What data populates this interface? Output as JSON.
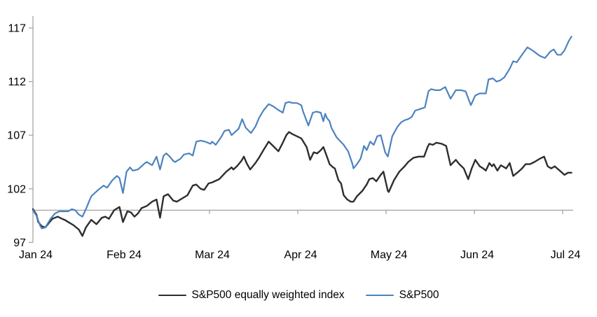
{
  "colors": {
    "background": "#ffffff",
    "axis": "#a6a6a6",
    "text": "#000000",
    "sp500_equal_weight_line": "#2e2e2e",
    "sp500_line": "#4c83c0"
  },
  "chart_data": {
    "type": "line",
    "title": "",
    "xlabel": "",
    "ylabel": "",
    "grid": false,
    "legend_position": "bottom",
    "x_axis": {
      "tick_labels": [
        "Jan 24",
        "Feb 24",
        "Mar 24",
        "Apr 24",
        "May 24",
        "Jun 24",
        "Jul 24"
      ],
      "tick_values": [
        0,
        1,
        2,
        3,
        4,
        5,
        6
      ],
      "range": [
        0,
        6.12
      ],
      "unit": "months since Jan 24"
    },
    "y_axis": {
      "tick_labels": [
        "97",
        "102",
        "107",
        "112",
        "117"
      ],
      "tick_values": [
        97,
        102,
        107,
        112,
        117
      ],
      "range": [
        97,
        117.5
      ],
      "baseline_value": 100
    },
    "series": [
      {
        "name": "S&P500 equally weighted index",
        "color": "#2e2e2e",
        "width": 2.4,
        "points": [
          [
            0,
            100.1
          ],
          [
            0.04,
            99.6
          ],
          [
            0.06,
            98.9
          ],
          [
            0.1,
            98.5
          ],
          [
            0.14,
            98.4
          ],
          [
            0.18,
            98.8
          ],
          [
            0.22,
            99.2
          ],
          [
            0.28,
            99.4
          ],
          [
            0.33,
            99.2
          ],
          [
            0.36,
            99.1
          ],
          [
            0.4,
            98.9
          ],
          [
            0.46,
            98.6
          ],
          [
            0.52,
            98.2
          ],
          [
            0.56,
            97.6
          ],
          [
            0.6,
            98.4
          ],
          [
            0.66,
            99.1
          ],
          [
            0.72,
            98.7
          ],
          [
            0.78,
            99.3
          ],
          [
            0.82,
            99.4
          ],
          [
            0.86,
            99.2
          ],
          [
            0.92,
            100
          ],
          [
            0.98,
            100.3
          ],
          [
            1.02,
            98.9
          ],
          [
            1.07,
            99.9
          ],
          [
            1.11,
            99.8
          ],
          [
            1.15,
            99.4
          ],
          [
            1.19,
            99.7
          ],
          [
            1.23,
            100.2
          ],
          [
            1.29,
            100.4
          ],
          [
            1.35,
            100.8
          ],
          [
            1.4,
            101
          ],
          [
            1.44,
            99.3
          ],
          [
            1.48,
            101.3
          ],
          [
            1.53,
            101.5
          ],
          [
            1.59,
            100.9
          ],
          [
            1.63,
            100.8
          ],
          [
            1.69,
            101.1
          ],
          [
            1.75,
            101.4
          ],
          [
            1.81,
            102.3
          ],
          [
            1.85,
            102.4
          ],
          [
            1.9,
            102
          ],
          [
            1.94,
            101.9
          ],
          [
            1.99,
            102.5
          ],
          [
            2.03,
            102.6
          ],
          [
            2.11,
            102.9
          ],
          [
            2.19,
            103.6
          ],
          [
            2.25,
            104
          ],
          [
            2.27,
            103.8
          ],
          [
            2.31,
            104.1
          ],
          [
            2.36,
            104.6
          ],
          [
            2.39,
            105
          ],
          [
            2.42,
            104.4
          ],
          [
            2.46,
            103.8
          ],
          [
            2.52,
            104.4
          ],
          [
            2.56,
            104.9
          ],
          [
            2.61,
            105.6
          ],
          [
            2.67,
            106.4
          ],
          [
            2.72,
            106
          ],
          [
            2.78,
            105.5
          ],
          [
            2.83,
            106.3
          ],
          [
            2.87,
            107
          ],
          [
            2.9,
            107.3
          ],
          [
            2.94,
            107.1
          ],
          [
            2.99,
            106.9
          ],
          [
            3.04,
            106.7
          ],
          [
            3.1,
            105.9
          ],
          [
            3.14,
            104.7
          ],
          [
            3.18,
            105.4
          ],
          [
            3.22,
            105.3
          ],
          [
            3.26,
            105.6
          ],
          [
            3.29,
            105.9
          ],
          [
            3.33,
            105
          ],
          [
            3.36,
            104.3
          ],
          [
            3.4,
            104
          ],
          [
            3.42,
            103.9
          ],
          [
            3.46,
            102.8
          ],
          [
            3.49,
            102.5
          ],
          [
            3.52,
            101.4
          ],
          [
            3.56,
            101
          ],
          [
            3.6,
            100.8
          ],
          [
            3.63,
            100.8
          ],
          [
            3.67,
            101.3
          ],
          [
            3.73,
            101.8
          ],
          [
            3.78,
            102.4
          ],
          [
            3.81,
            102.9
          ],
          [
            3.85,
            103
          ],
          [
            3.89,
            102.7
          ],
          [
            3.93,
            103.2
          ],
          [
            3.97,
            103.6
          ],
          [
            4.02,
            101.8
          ],
          [
            4.03,
            101.7
          ],
          [
            4.09,
            102.8
          ],
          [
            4.15,
            103.6
          ],
          [
            4.21,
            104.1
          ],
          [
            4.25,
            104.5
          ],
          [
            4.31,
            104.9
          ],
          [
            4.37,
            105
          ],
          [
            4.43,
            105
          ],
          [
            4.47,
            105.9
          ],
          [
            4.49,
            106.2
          ],
          [
            4.53,
            106.1
          ],
          [
            4.57,
            106.3
          ],
          [
            4.63,
            106.2
          ],
          [
            4.68,
            106
          ],
          [
            4.73,
            104.2
          ],
          [
            4.79,
            104.7
          ],
          [
            4.83,
            104.3
          ],
          [
            4.88,
            103.9
          ],
          [
            4.93,
            102.9
          ],
          [
            4.97,
            103.9
          ],
          [
            5.01,
            104.7
          ],
          [
            5.06,
            104.1
          ],
          [
            5.1,
            103.9
          ],
          [
            5.13,
            103.7
          ],
          [
            5.17,
            104.4
          ],
          [
            5.2,
            104.1
          ],
          [
            5.22,
            104.3
          ],
          [
            5.26,
            103.7
          ],
          [
            5.3,
            104.2
          ],
          [
            5.36,
            103.9
          ],
          [
            5.4,
            104.4
          ],
          [
            5.44,
            103.2
          ],
          [
            5.5,
            103.6
          ],
          [
            5.54,
            103.9
          ],
          [
            5.58,
            104.3
          ],
          [
            5.63,
            104.3
          ],
          [
            5.68,
            104.5
          ],
          [
            5.74,
            104.8
          ],
          [
            5.79,
            105
          ],
          [
            5.83,
            104.1
          ],
          [
            5.87,
            103.9
          ],
          [
            5.91,
            104.1
          ],
          [
            5.98,
            103.6
          ],
          [
            6.02,
            103.3
          ],
          [
            6.06,
            103.5
          ],
          [
            6.1,
            103.5
          ]
        ]
      },
      {
        "name": "S&P500",
        "color": "#4c83c0",
        "width": 2.2,
        "points": [
          [
            0,
            100
          ],
          [
            0.04,
            99.5
          ],
          [
            0.08,
            98.6
          ],
          [
            0.1,
            98.3
          ],
          [
            0.14,
            98.4
          ],
          [
            0.2,
            99.2
          ],
          [
            0.25,
            99.7
          ],
          [
            0.3,
            99.9
          ],
          [
            0.36,
            99.9
          ],
          [
            0.4,
            99.9
          ],
          [
            0.44,
            100.1
          ],
          [
            0.48,
            100
          ],
          [
            0.52,
            99.6
          ],
          [
            0.56,
            99.4
          ],
          [
            0.6,
            100.1
          ],
          [
            0.64,
            100.9
          ],
          [
            0.66,
            101.3
          ],
          [
            0.74,
            101.9
          ],
          [
            0.8,
            102.3
          ],
          [
            0.84,
            102.1
          ],
          [
            0.9,
            102.8
          ],
          [
            0.95,
            103.2
          ],
          [
            0.98,
            103
          ],
          [
            1.02,
            101.6
          ],
          [
            1.06,
            103.6
          ],
          [
            1.1,
            104
          ],
          [
            1.13,
            103.7
          ],
          [
            1.19,
            103.8
          ],
          [
            1.23,
            104.1
          ],
          [
            1.27,
            104.4
          ],
          [
            1.29,
            104.5
          ],
          [
            1.35,
            104.2
          ],
          [
            1.4,
            105
          ],
          [
            1.44,
            103.8
          ],
          [
            1.48,
            105.1
          ],
          [
            1.51,
            105.3
          ],
          [
            1.55,
            105
          ],
          [
            1.59,
            104.6
          ],
          [
            1.61,
            104.5
          ],
          [
            1.67,
            104.8
          ],
          [
            1.71,
            105.2
          ],
          [
            1.77,
            105.3
          ],
          [
            1.81,
            105.1
          ],
          [
            1.85,
            106.4
          ],
          [
            1.9,
            106.5
          ],
          [
            1.95,
            106.4
          ],
          [
            2.01,
            106.2
          ],
          [
            2.03,
            106.4
          ],
          [
            2.07,
            106.1
          ],
          [
            2.13,
            106.8
          ],
          [
            2.17,
            107.4
          ],
          [
            2.22,
            107.5
          ],
          [
            2.25,
            107
          ],
          [
            2.29,
            107.3
          ],
          [
            2.33,
            107.6
          ],
          [
            2.37,
            108.5
          ],
          [
            2.41,
            107.7
          ],
          [
            2.47,
            107.2
          ],
          [
            2.52,
            107.8
          ],
          [
            2.56,
            108.6
          ],
          [
            2.61,
            109.3
          ],
          [
            2.67,
            109.9
          ],
          [
            2.72,
            109.7
          ],
          [
            2.77,
            109.4
          ],
          [
            2.83,
            109.1
          ],
          [
            2.86,
            110
          ],
          [
            2.9,
            110.1
          ],
          [
            2.94,
            110
          ],
          [
            2.99,
            110
          ],
          [
            3.04,
            109.8
          ],
          [
            3.06,
            109.2
          ],
          [
            3.12,
            107.9
          ],
          [
            3.17,
            109.1
          ],
          [
            3.21,
            109.2
          ],
          [
            3.26,
            109.1
          ],
          [
            3.29,
            108.3
          ],
          [
            3.31,
            109
          ],
          [
            3.33,
            108.6
          ],
          [
            3.36,
            108.3
          ],
          [
            3.38,
            107.7
          ],
          [
            3.44,
            106.8
          ],
          [
            3.52,
            106.1
          ],
          [
            3.57,
            105.5
          ],
          [
            3.62,
            104.3
          ],
          [
            3.63,
            103.9
          ],
          [
            3.67,
            104.3
          ],
          [
            3.71,
            104.8
          ],
          [
            3.75,
            106
          ],
          [
            3.78,
            105.6
          ],
          [
            3.82,
            106.4
          ],
          [
            3.86,
            106.1
          ],
          [
            3.9,
            106.9
          ],
          [
            3.94,
            107
          ],
          [
            3.99,
            105.4
          ],
          [
            4.02,
            105
          ],
          [
            4.07,
            106.9
          ],
          [
            4.13,
            107.8
          ],
          [
            4.17,
            108.2
          ],
          [
            4.21,
            108.4
          ],
          [
            4.25,
            108.5
          ],
          [
            4.29,
            108.7
          ],
          [
            4.33,
            109.3
          ],
          [
            4.37,
            109.4
          ],
          [
            4.44,
            109.6
          ],
          [
            4.48,
            111.1
          ],
          [
            4.51,
            111.3
          ],
          [
            4.56,
            111.2
          ],
          [
            4.61,
            111.2
          ],
          [
            4.67,
            111.5
          ],
          [
            4.73,
            110.4
          ],
          [
            4.79,
            111.2
          ],
          [
            4.85,
            111.2
          ],
          [
            4.9,
            111.1
          ],
          [
            4.96,
            109.8
          ],
          [
            5.01,
            110.7
          ],
          [
            5.06,
            110.9
          ],
          [
            5.13,
            110.9
          ],
          [
            5.16,
            112.2
          ],
          [
            5.21,
            112.3
          ],
          [
            5.25,
            112
          ],
          [
            5.29,
            112.1
          ],
          [
            5.34,
            112.4
          ],
          [
            5.4,
            113.2
          ],
          [
            5.44,
            113.9
          ],
          [
            5.48,
            113.8
          ],
          [
            5.54,
            114.5
          ],
          [
            5.6,
            115.2
          ],
          [
            5.66,
            114.9
          ],
          [
            5.74,
            114.4
          ],
          [
            5.8,
            114.2
          ],
          [
            5.86,
            114.8
          ],
          [
            5.9,
            115
          ],
          [
            5.94,
            114.5
          ],
          [
            5.98,
            114.5
          ],
          [
            6.02,
            114.9
          ],
          [
            6.07,
            115.8
          ],
          [
            6.1,
            116.2
          ]
        ]
      }
    ]
  },
  "legend": {
    "items": [
      {
        "label": "S&P500 equally weighted index"
      },
      {
        "label": "S&P500"
      }
    ]
  }
}
